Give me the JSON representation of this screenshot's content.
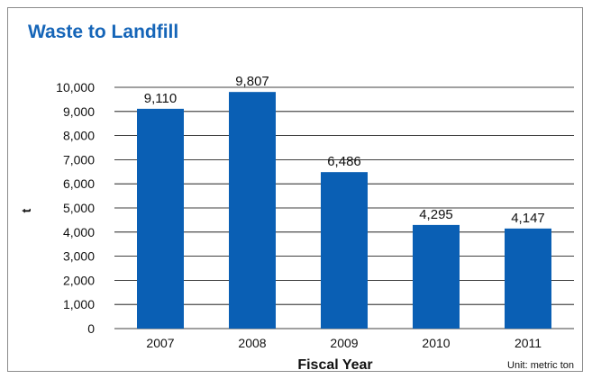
{
  "chart_data": {
    "type": "bar",
    "title": "Waste to Landfill",
    "xlabel": "Fiscal Year",
    "ylabel": "t",
    "unit_note": "Unit: metric ton",
    "categories": [
      "2007",
      "2008",
      "2009",
      "2010",
      "2011"
    ],
    "values": [
      9110,
      9807,
      6486,
      4295,
      4147
    ],
    "value_labels": [
      "9,110",
      "9,807",
      "6,486",
      "4,295",
      "4,147"
    ],
    "ylim": [
      0,
      10000
    ],
    "yticks": [
      "0",
      "1,000",
      "2,000",
      "3,000",
      "4,000",
      "5,000",
      "6,000",
      "7,000",
      "8,000",
      "9,000",
      "10,000"
    ],
    "grid": true,
    "bar_color": "#0a5fb4"
  }
}
